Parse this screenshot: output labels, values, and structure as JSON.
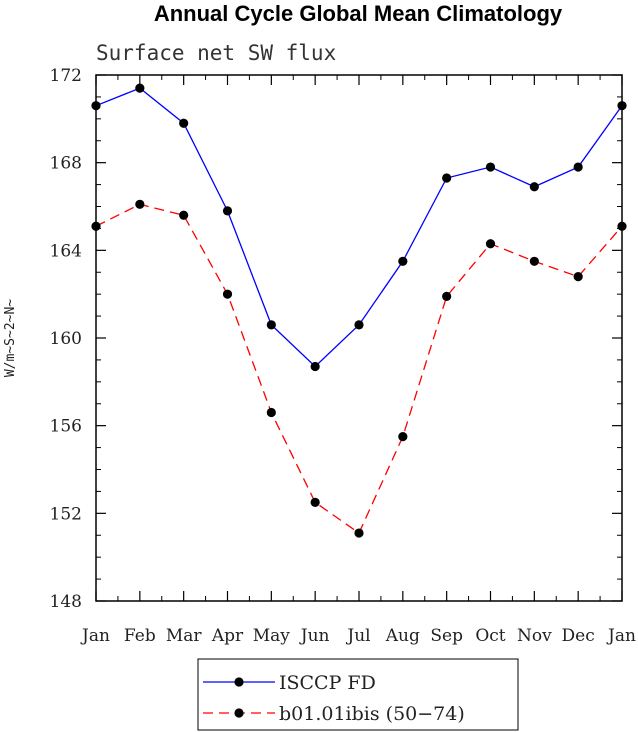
{
  "chart_data": {
    "type": "line",
    "title": "Annual Cycle Global Mean Climatology",
    "subtitle": "Surface net SW flux",
    "xlabel": "",
    "ylabel": "W/m~S~2~N~",
    "categories": [
      "Jan",
      "Feb",
      "Mar",
      "Apr",
      "May",
      "Jun",
      "Jul",
      "Aug",
      "Sep",
      "Oct",
      "Nov",
      "Dec",
      "Jan"
    ],
    "ylim": [
      148,
      172
    ],
    "yticks": [
      148,
      152,
      156,
      160,
      164,
      168,
      172
    ],
    "grid": false,
    "legend_position": "bottom",
    "series": [
      {
        "name": "ISCCP FD",
        "color": "#0000ff",
        "line_style": "solid",
        "marker": "filled-circle",
        "values": [
          170.6,
          171.4,
          169.8,
          165.8,
          160.6,
          158.7,
          160.6,
          163.5,
          167.3,
          167.8,
          166.9,
          167.8,
          170.6
        ]
      },
      {
        "name": "b01.01ibis (50−74)",
        "color": "#ff0000",
        "line_style": "dashed",
        "marker": "filled-circle",
        "values": [
          165.1,
          166.1,
          165.6,
          162.0,
          156.6,
          152.5,
          151.1,
          155.5,
          161.9,
          164.3,
          163.5,
          162.8,
          165.1
        ]
      }
    ]
  }
}
